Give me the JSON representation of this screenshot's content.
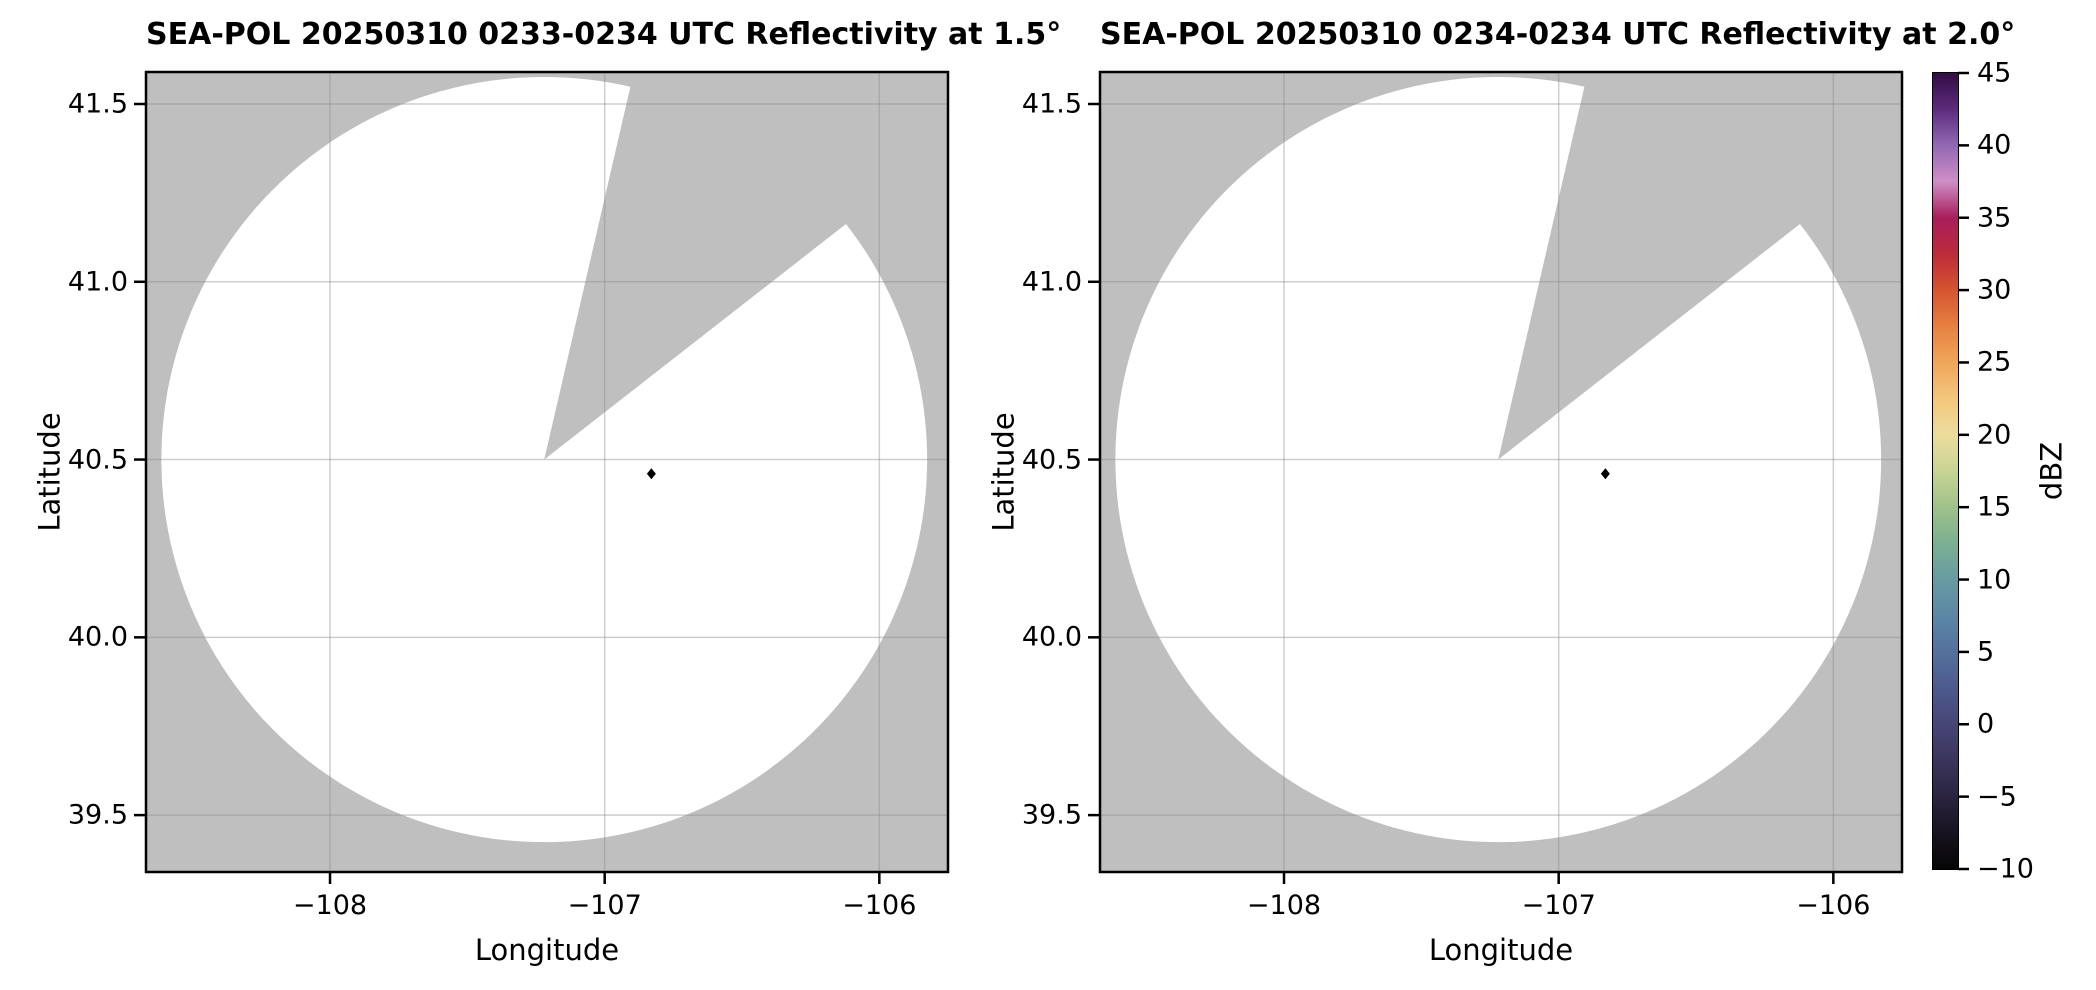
{
  "figure": {
    "background": "#ffffff",
    "panel_background": "#bfbfbf",
    "coverage_color": "#ffffff",
    "grid_color": "#8d8d8d",
    "frame_color": "#000000",
    "text_color": "#000000",
    "marker_color": "#000000"
  },
  "chart_data": [
    {
      "type": "heatmap",
      "title": "SEA-POL 20250310 0233-0234 UTC Reflectivity at 1.5°",
      "xlabel": "Longitude",
      "ylabel": "Latitude",
      "xlim": [
        -108.67,
        -105.75
      ],
      "ylim": [
        39.34,
        41.59
      ],
      "xticks": [
        -108,
        -107,
        -106
      ],
      "xtick_labels": [
        "−108",
        "−107",
        "−106"
      ],
      "yticks": [
        41.5,
        41.0,
        40.5,
        40.0,
        39.5
      ],
      "ytick_labels": [
        "41.5",
        "41.0",
        "40.5",
        "40.0",
        "39.5"
      ],
      "grid": true,
      "radar_center": {
        "lon": -107.22,
        "lat": 40.5
      },
      "scan_radius_deg": {
        "lon": 1.394,
        "lat": 1.076
      },
      "blocked_sector_azimuth_deg": [
        13,
        52
      ],
      "site_marker": {
        "lon": -106.83,
        "lat": 40.46,
        "shape": "diamond"
      },
      "field_note": "scanned coverage rendered white — no echoes at or above the colorbar minimum are visible"
    },
    {
      "type": "heatmap",
      "title": "SEA-POL 20250310 0234-0234 UTC Reflectivity at 2.0°",
      "xlabel": "Longitude",
      "ylabel": "Latitude",
      "xlim": [
        -108.67,
        -105.75
      ],
      "ylim": [
        39.34,
        41.59
      ],
      "xticks": [
        -108,
        -107,
        -106
      ],
      "xtick_labels": [
        "−108",
        "−107",
        "−106"
      ],
      "yticks": [
        41.5,
        41.0,
        40.5,
        40.0,
        39.5
      ],
      "ytick_labels": [
        "41.5",
        "41.0",
        "40.5",
        "40.0",
        "39.5"
      ],
      "grid": true,
      "radar_center": {
        "lon": -107.22,
        "lat": 40.5
      },
      "scan_radius_deg": {
        "lon": 1.394,
        "lat": 1.076
      },
      "blocked_sector_azimuth_deg": [
        13,
        52
      ],
      "site_marker": {
        "lon": -106.83,
        "lat": 40.46,
        "shape": "diamond"
      },
      "field_note": "scanned coverage rendered white — no echoes at or above the colorbar minimum are visible"
    }
  ],
  "colorbar": {
    "label": "dBZ",
    "min": -10,
    "max": 45,
    "ticks": [
      45,
      40,
      35,
      30,
      25,
      20,
      15,
      10,
      5,
      0,
      -5,
      -10
    ],
    "tick_labels": [
      "45",
      "40",
      "35",
      "30",
      "25",
      "20",
      "15",
      "10",
      "5",
      "0",
      "−5",
      "−10"
    ],
    "gradient_stop_step_dbz": 2.5,
    "colors_bottom_to_top": [
      "#050505",
      "#181320",
      "#2a2440",
      "#3b355b",
      "#464677",
      "#4e5a8c",
      "#54719c",
      "#5c87a6",
      "#679ba2",
      "#7cb092",
      "#9fc28a",
      "#c9d492",
      "#ecdd9d",
      "#f3c67c",
      "#f0a65b",
      "#e68041",
      "#d5542e",
      "#bb2c3a",
      "#a81e5c",
      "#cf8ec6",
      "#9268b4",
      "#5b2c7c",
      "#340c44"
    ]
  }
}
